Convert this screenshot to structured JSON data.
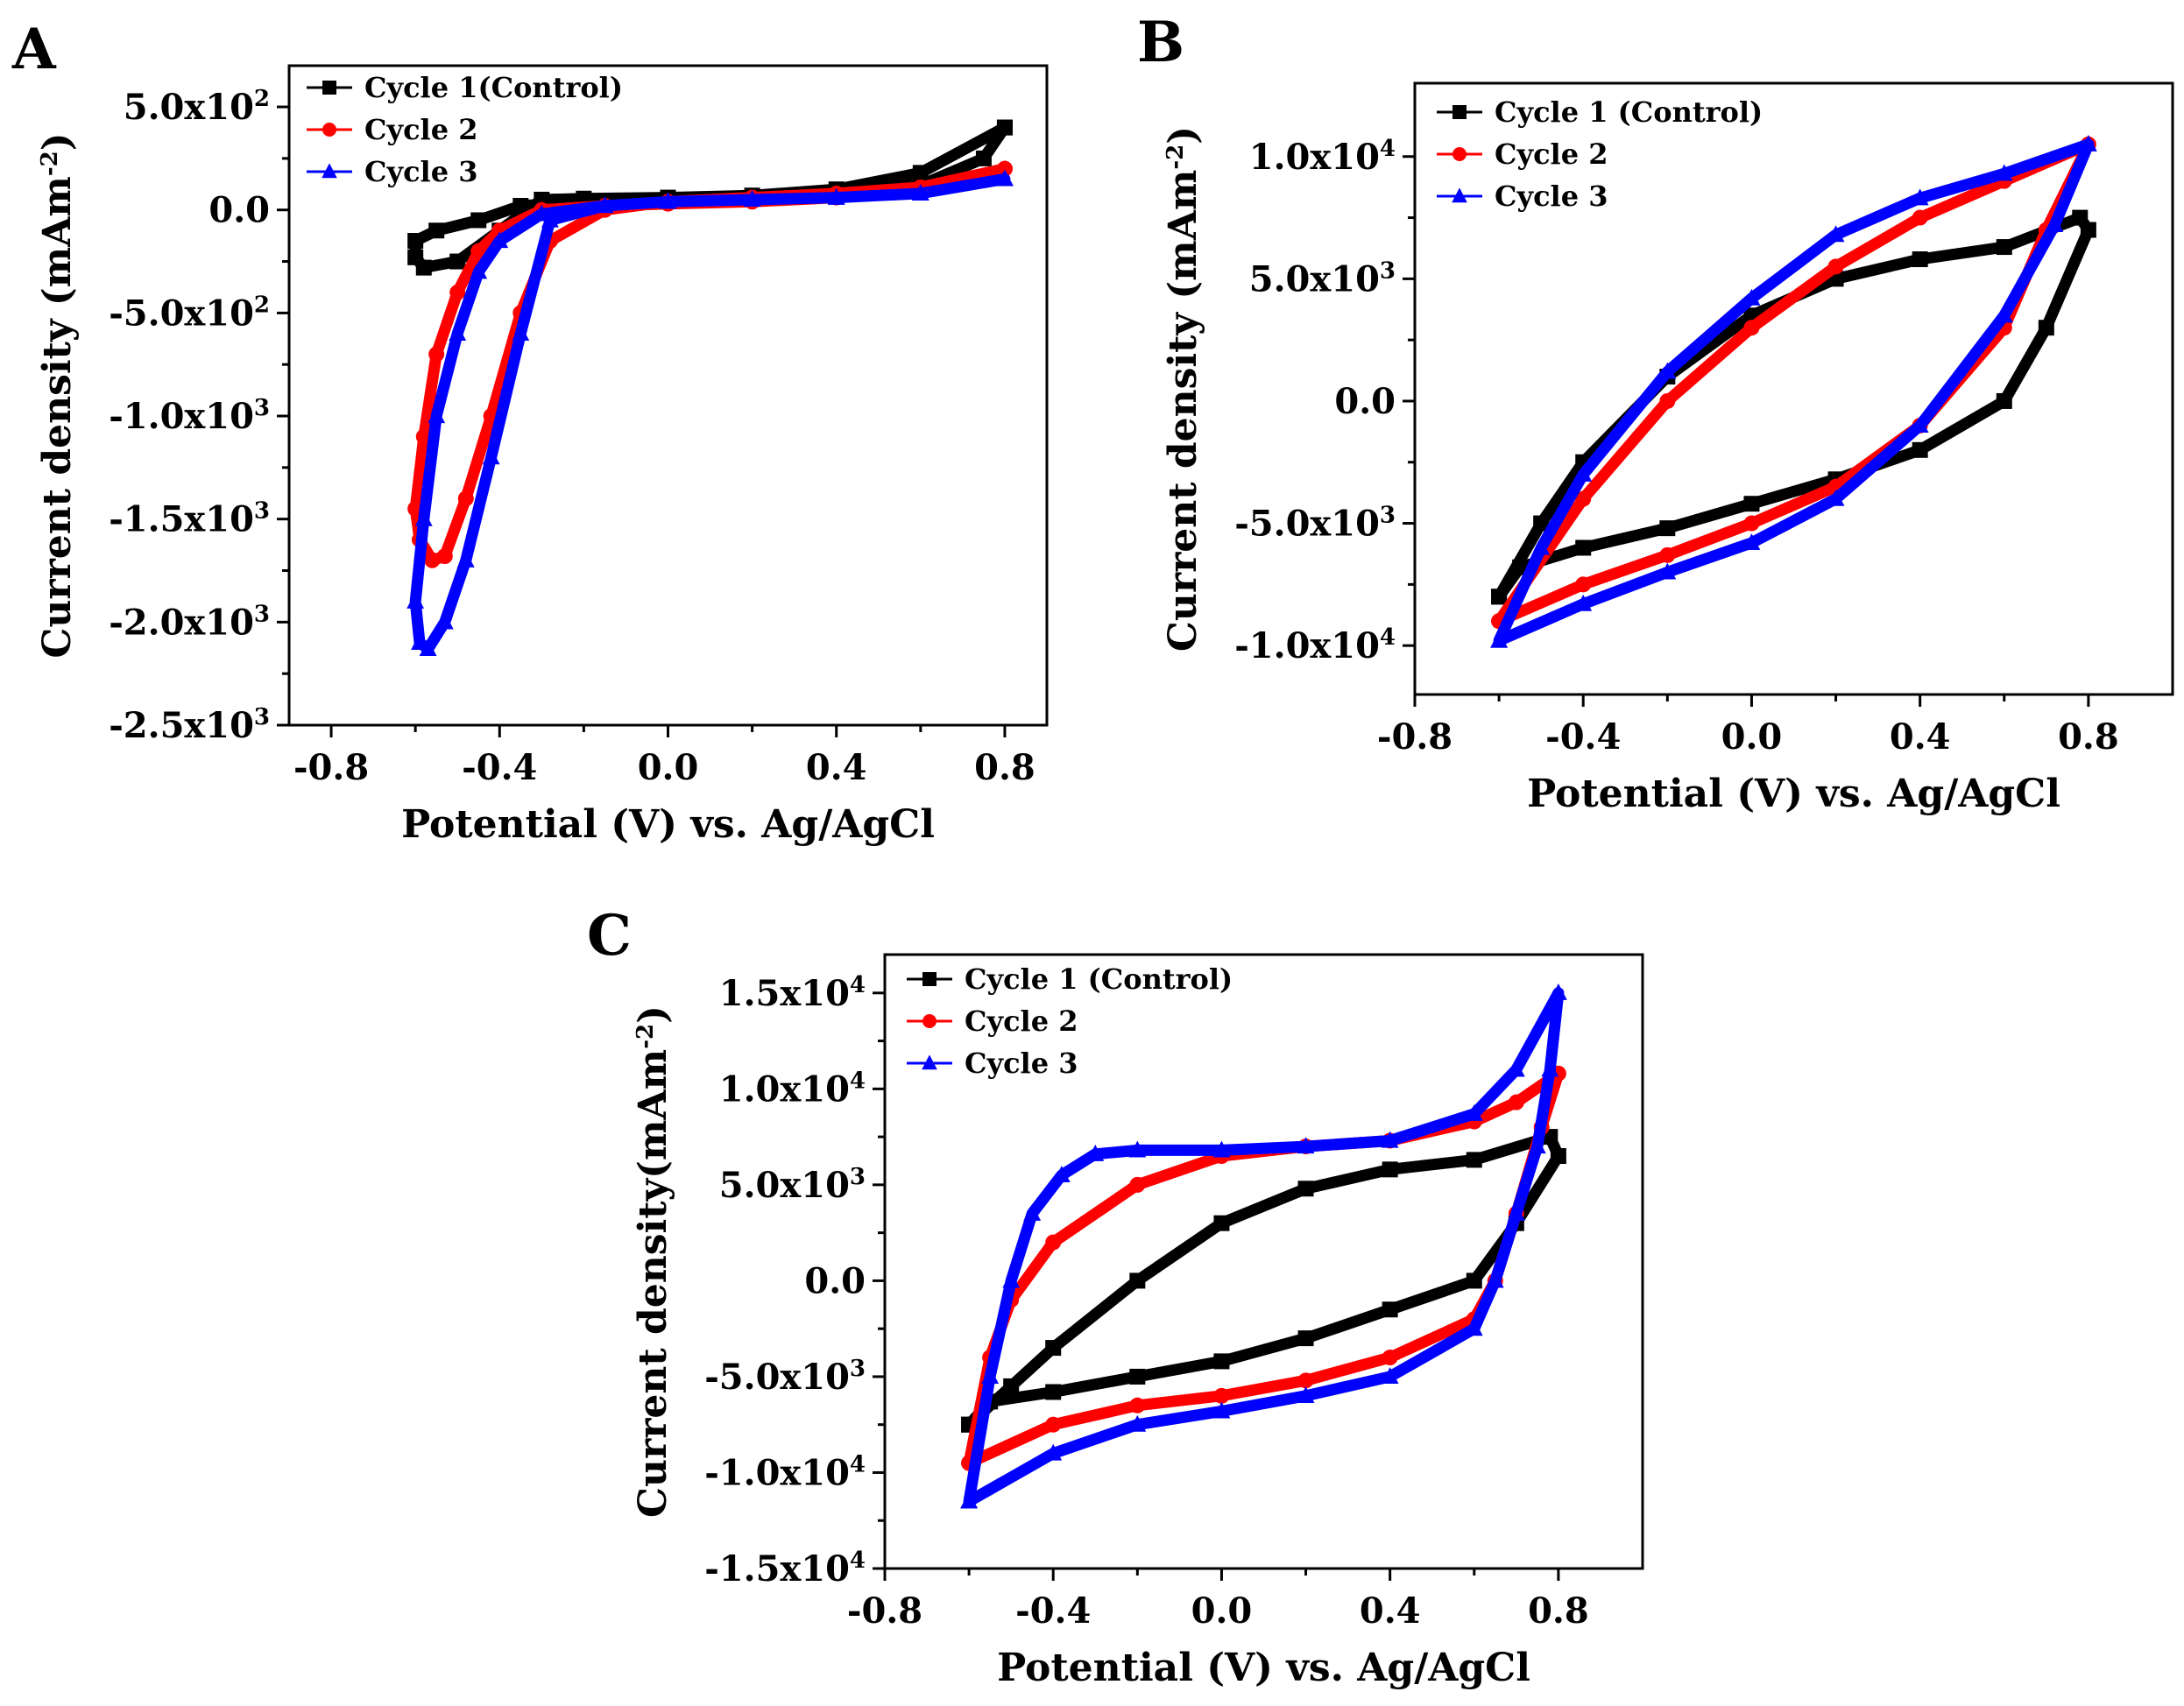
{
  "colors": {
    "cycle1": "#000000",
    "cycle2": "#ff0000",
    "cycle3": "#0000ff"
  },
  "chart_data": [
    {
      "panel": "A",
      "type": "line",
      "xlabel": "Potential (V) vs. Ag/AgCl",
      "ylabel": "Current density (mAm",
      "ylabel_exp": "-2",
      "ylabel_suffix": ")",
      "xlim": [
        -0.9,
        0.9
      ],
      "ylim": [
        -2500,
        700
      ],
      "xticks": [
        {
          "value": -0.8,
          "label": "-0.8"
        },
        {
          "value": -0.4,
          "label": "-0.4"
        },
        {
          "value": 0.0,
          "label": "0.0"
        },
        {
          "value": 0.4,
          "label": "0.4"
        },
        {
          "value": 0.8,
          "label": "0.8"
        }
      ],
      "yticks": [
        {
          "value": 500,
          "mant": "5.0x10",
          "exp": "2"
        },
        {
          "value": 0,
          "mant": "0.0",
          "exp": ""
        },
        {
          "value": -500,
          "mant": "-5.0x10",
          "exp": "2"
        },
        {
          "value": -1000,
          "mant": "-1.0x10",
          "exp": "3"
        },
        {
          "value": -1500,
          "mant": "-1.5x10",
          "exp": "3"
        },
        {
          "value": -2000,
          "mant": "-2.0x10",
          "exp": "3"
        },
        {
          "value": -2500,
          "mant": "-2.5x10",
          "exp": "3"
        }
      ],
      "legend": [
        {
          "label": "Cycle 1(Control)",
          "marker": "square"
        },
        {
          "label": "Cycle 2",
          "marker": "circle"
        },
        {
          "label": "Cycle 3",
          "marker": "triangle"
        }
      ],
      "series": [
        {
          "name": "Cycle 1(Control)",
          "color": "#000000",
          "marker": "square",
          "x": [
            0.8,
            0.6,
            0.4,
            0.2,
            0.0,
            -0.2,
            -0.3,
            -0.4,
            -0.5,
            -0.58,
            -0.6,
            -0.6,
            -0.55,
            -0.45,
            -0.35,
            -0.2,
            0.0,
            0.2,
            0.4,
            0.6,
            0.75,
            0.8
          ],
          "y": [
            400,
            180,
            100,
            70,
            60,
            55,
            50,
            -100,
            -250,
            -280,
            -230,
            -150,
            -100,
            -50,
            20,
            40,
            45,
            55,
            70,
            120,
            250,
            400
          ]
        },
        {
          "name": "Cycle 2",
          "color": "#ff0000",
          "marker": "circle",
          "x": [
            0.8,
            0.6,
            0.4,
            0.2,
            0.0,
            -0.15,
            -0.28,
            -0.35,
            -0.42,
            -0.48,
            -0.53,
            -0.56,
            -0.59,
            -0.6,
            -0.58,
            -0.55,
            -0.5,
            -0.45,
            -0.4,
            -0.3,
            -0.15,
            0.0,
            0.2,
            0.4,
            0.6,
            0.8
          ],
          "y": [
            200,
            110,
            80,
            60,
            40,
            0,
            -150,
            -500,
            -1000,
            -1400,
            -1680,
            -1700,
            -1600,
            -1450,
            -1100,
            -700,
            -400,
            -200,
            -100,
            0,
            20,
            30,
            40,
            60,
            100,
            200
          ]
        },
        {
          "name": "Cycle 3",
          "color": "#0000ff",
          "marker": "triangle",
          "x": [
            0.8,
            0.6,
            0.4,
            0.2,
            0.0,
            -0.15,
            -0.28,
            -0.35,
            -0.42,
            -0.48,
            -0.53,
            -0.57,
            -0.59,
            -0.6,
            -0.58,
            -0.55,
            -0.5,
            -0.45,
            -0.4,
            -0.3,
            -0.15,
            0.0,
            0.2,
            0.4,
            0.6,
            0.8
          ],
          "y": [
            150,
            80,
            60,
            50,
            40,
            20,
            -50,
            -600,
            -1200,
            -1700,
            -2000,
            -2130,
            -2100,
            -1900,
            -1500,
            -1000,
            -600,
            -300,
            -150,
            -20,
            20,
            40,
            50,
            60,
            80,
            150
          ]
        }
      ]
    },
    {
      "panel": "B",
      "type": "line",
      "xlabel": "Potential (V) vs. Ag/AgCl",
      "ylabel": "Current density (mAm",
      "ylabel_exp": "-2",
      "ylabel_suffix": ")",
      "xlim": [
        -0.8,
        1.0
      ],
      "ylim": [
        -12000,
        13000
      ],
      "xticks": [
        {
          "value": -0.8,
          "label": "-0.8"
        },
        {
          "value": -0.4,
          "label": "-0.4"
        },
        {
          "value": 0.0,
          "label": "0.0"
        },
        {
          "value": 0.4,
          "label": "0.4"
        },
        {
          "value": 0.8,
          "label": "0.8"
        }
      ],
      "yticks": [
        {
          "value": 10000,
          "mant": "1.0x10",
          "exp": "4"
        },
        {
          "value": 5000,
          "mant": "5.0x10",
          "exp": "3"
        },
        {
          "value": 0,
          "mant": "0.0",
          "exp": ""
        },
        {
          "value": -5000,
          "mant": "-5.0x10",
          "exp": "3"
        },
        {
          "value": -10000,
          "mant": "-1.0x10",
          "exp": "4"
        }
      ],
      "legend": [
        {
          "label": "Cycle 1 (Control)",
          "marker": "square"
        },
        {
          "label": "Cycle 2",
          "marker": "circle"
        },
        {
          "label": "Cycle 3",
          "marker": "triangle"
        }
      ],
      "series": [
        {
          "name": "Cycle 1 (Control)",
          "color": "#000000",
          "marker": "square",
          "x": [
            -0.6,
            -0.5,
            -0.4,
            -0.2,
            0.0,
            0.2,
            0.4,
            0.6,
            0.78,
            0.8,
            0.7,
            0.6,
            0.4,
            0.2,
            0.0,
            -0.2,
            -0.4,
            -0.55,
            -0.6
          ],
          "y": [
            -8000,
            -5000,
            -2500,
            1000,
            3500,
            5000,
            5800,
            6300,
            7500,
            7000,
            3000,
            0,
            -2000,
            -3200,
            -4200,
            -5200,
            -6000,
            -6800,
            -8000
          ]
        },
        {
          "name": "Cycle 2",
          "color": "#ff0000",
          "marker": "circle",
          "x": [
            -0.6,
            -0.4,
            -0.2,
            0.0,
            0.2,
            0.4,
            0.6,
            0.8,
            0.7,
            0.6,
            0.4,
            0.2,
            0.0,
            -0.2,
            -0.4,
            -0.6
          ],
          "y": [
            -9000,
            -4000,
            0,
            3000,
            5500,
            7500,
            9000,
            10500,
            7000,
            3000,
            -1000,
            -3500,
            -5000,
            -6300,
            -7500,
            -9000
          ]
        },
        {
          "name": "Cycle 3",
          "color": "#0000ff",
          "marker": "triangle",
          "x": [
            -0.6,
            -0.5,
            -0.4,
            -0.2,
            0.0,
            0.2,
            0.4,
            0.6,
            0.8,
            0.72,
            0.6,
            0.4,
            0.2,
            0.0,
            -0.2,
            -0.4,
            -0.6
          ],
          "y": [
            -9800,
            -6000,
            -3000,
            1200,
            4200,
            6800,
            8300,
            9300,
            10500,
            7200,
            3500,
            -1000,
            -4000,
            -5800,
            -7000,
            -8300,
            -9800
          ]
        }
      ]
    },
    {
      "panel": "C",
      "type": "line",
      "xlabel": "Potential (V) vs. Ag/AgCl",
      "ylabel": "Current density(mAm",
      "ylabel_exp": "-2",
      "ylabel_suffix": ")",
      "xlim": [
        -0.8,
        1.0
      ],
      "ylim": [
        -15000,
        17000
      ],
      "xticks": [
        {
          "value": -0.8,
          "label": "-0.8"
        },
        {
          "value": -0.4,
          "label": "-0.4"
        },
        {
          "value": 0.0,
          "label": "0.0"
        },
        {
          "value": 0.4,
          "label": "0.4"
        },
        {
          "value": 0.8,
          "label": "0.8"
        }
      ],
      "yticks": [
        {
          "value": 15000,
          "mant": "1.5x10",
          "exp": "4"
        },
        {
          "value": 10000,
          "mant": "1.0x10",
          "exp": "4"
        },
        {
          "value": 5000,
          "mant": "5.0x10",
          "exp": "3"
        },
        {
          "value": 0,
          "mant": "0.0",
          "exp": ""
        },
        {
          "value": -5000,
          "mant": "-5.0x10",
          "exp": "3"
        },
        {
          "value": -10000,
          "mant": "-1.0x10",
          "exp": "4"
        },
        {
          "value": -15000,
          "mant": "-1.5x10",
          "exp": "4"
        }
      ],
      "legend": [
        {
          "label": "Cycle 1 (Control)",
          "marker": "square"
        },
        {
          "label": "Cycle 2",
          "marker": "circle"
        },
        {
          "label": "Cycle 3",
          "marker": "triangle"
        }
      ],
      "series": [
        {
          "name": "Cycle 1 (Control)",
          "color": "#000000",
          "marker": "square",
          "x": [
            -0.6,
            -0.5,
            -0.4,
            -0.2,
            0.0,
            0.2,
            0.4,
            0.6,
            0.78,
            0.8,
            0.7,
            0.6,
            0.4,
            0.2,
            0.0,
            -0.2,
            -0.4,
            -0.55,
            -0.6
          ],
          "y": [
            -7500,
            -5500,
            -3500,
            0,
            3000,
            4800,
            5800,
            6300,
            7500,
            6500,
            3000,
            0,
            -1500,
            -3000,
            -4200,
            -5000,
            -5800,
            -6300,
            -7500
          ]
        },
        {
          "name": "Cycle 2",
          "color": "#ff0000",
          "marker": "circle",
          "x": [
            -0.6,
            -0.55,
            -0.5,
            -0.4,
            -0.2,
            0.0,
            0.2,
            0.4,
            0.6,
            0.7,
            0.8,
            0.76,
            0.7,
            0.65,
            0.6,
            0.4,
            0.2,
            0.0,
            -0.2,
            -0.4,
            -0.6
          ],
          "y": [
            -9500,
            -4000,
            -1000,
            2000,
            5000,
            6500,
            7000,
            7300,
            8300,
            9300,
            10800,
            8000,
            3500,
            0,
            -2000,
            -4000,
            -5200,
            -6000,
            -6500,
            -7500,
            -9500
          ]
        },
        {
          "name": "Cycle 3",
          "color": "#0000ff",
          "marker": "triangle",
          "x": [
            -0.6,
            -0.55,
            -0.5,
            -0.45,
            -0.38,
            -0.3,
            -0.2,
            0.0,
            0.2,
            0.4,
            0.6,
            0.7,
            0.8,
            0.78,
            0.75,
            0.7,
            0.65,
            0.6,
            0.4,
            0.2,
            0.0,
            -0.2,
            -0.4,
            -0.6
          ],
          "y": [
            -11500,
            -5000,
            0,
            3500,
            5500,
            6600,
            6800,
            6800,
            7000,
            7300,
            8700,
            11000,
            15000,
            11000,
            7000,
            3500,
            0,
            -2500,
            -5000,
            -6000,
            -6800,
            -7500,
            -9000,
            -11500
          ]
        }
      ]
    }
  ]
}
